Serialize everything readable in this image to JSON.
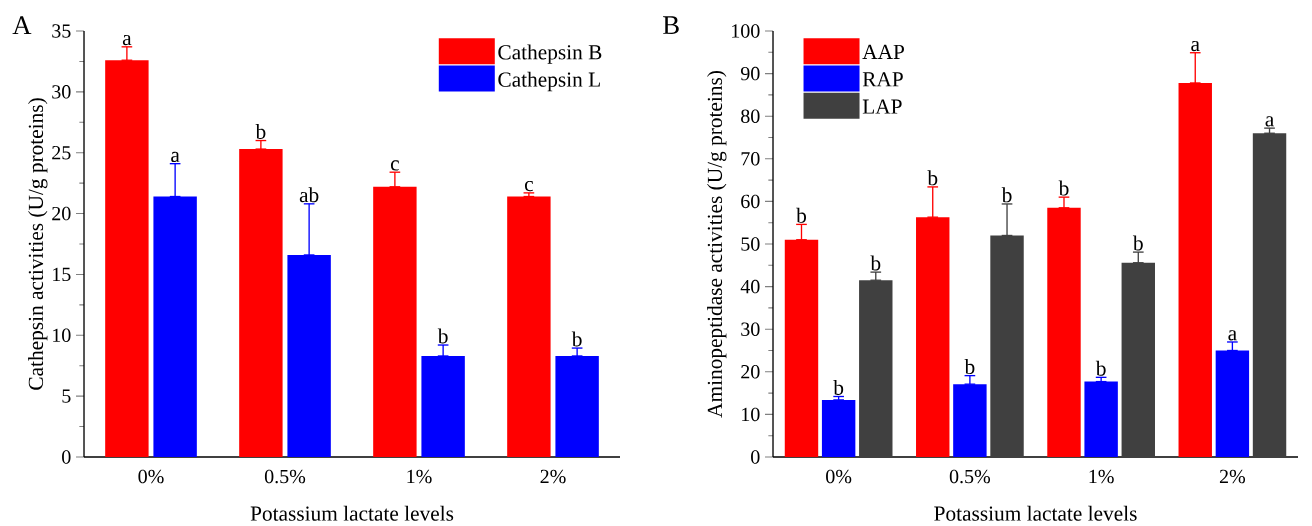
{
  "chart_data": [
    {
      "type": "bar",
      "categories": [
        "0%",
        "0.5%",
        "1%",
        "2%"
      ],
      "xlabel": "Potassium lactate levels",
      "ylabel": "Cathepsin activities (U/g proteins)",
      "ylim": [
        0,
        35
      ],
      "yticks": [
        0,
        5,
        10,
        15,
        20,
        25,
        30,
        35
      ],
      "legend": "top right",
      "series": [
        {
          "name": "Cathepsin B",
          "color": "#ff0000",
          "values": [
            32.6,
            25.3,
            22.2,
            21.4
          ],
          "errors": [
            [
              32.6,
              33.7
            ],
            [
              25.3,
              26.0
            ],
            [
              22.2,
              23.4
            ],
            [
              21.4,
              21.7
            ]
          ],
          "value_labels": [
            "a",
            "b",
            "c",
            "c"
          ]
        },
        {
          "name": "Cathepsin L",
          "color": "#0000ff",
          "values": [
            21.4,
            16.6,
            8.3,
            8.3
          ],
          "errors": [
            [
              21.4,
              24.1
            ],
            [
              16.6,
              20.8
            ],
            [
              8.3,
              9.2
            ],
            [
              8.3,
              8.95
            ]
          ],
          "value_labels": [
            "a",
            "ab",
            "b",
            "b"
          ]
        }
      ],
      "annotations": [
        "A"
      ]
    },
    {
      "type": "bar",
      "categories": [
        "0%",
        "0.5%",
        "1%",
        "2%"
      ],
      "xlabel": "Potassium lactate levels",
      "ylabel": "Aminopeptidase activities (U/g proteins)",
      "ylim": [
        0,
        100
      ],
      "yticks": [
        0,
        10,
        20,
        30,
        40,
        50,
        60,
        70,
        80,
        90,
        100
      ],
      "legend": "top left",
      "series": [
        {
          "name": "AAP",
          "color": "#ff0000",
          "values": [
            51.0,
            56.3,
            58.5,
            87.8
          ],
          "errors": [
            [
              51.0,
              54.6
            ],
            [
              56.3,
              63.4
            ],
            [
              58.5,
              61.0
            ],
            [
              87.8,
              94.9
            ]
          ],
          "value_labels": [
            "b",
            "b",
            "b",
            "a"
          ]
        },
        {
          "name": "RAP",
          "color": "#0000ff",
          "values": [
            13.4,
            17.1,
            17.7,
            25.0
          ],
          "errors": [
            [
              13.4,
              14.2
            ],
            [
              17.1,
              19.1
            ],
            [
              17.7,
              18.7
            ],
            [
              25.0,
              27.0
            ]
          ],
          "value_labels": [
            "b",
            "b",
            "b",
            "a"
          ]
        },
        {
          "name": "LAP",
          "color": "#404040",
          "values": [
            41.5,
            52.0,
            45.6,
            76.0
          ],
          "errors": [
            [
              41.5,
              43.4
            ],
            [
              52.0,
              59.4
            ],
            [
              45.6,
              48.1
            ],
            [
              76.0,
              77.2
            ]
          ],
          "value_labels": [
            "b",
            "b",
            "b",
            "a"
          ]
        }
      ],
      "annotations": [
        "B"
      ]
    }
  ]
}
